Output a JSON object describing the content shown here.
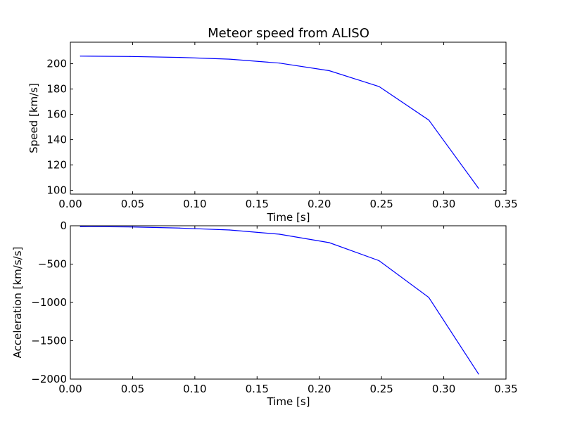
{
  "chart_data": [
    {
      "type": "line",
      "title": "Meteor speed from  ALISO",
      "xlabel": "Time [s]",
      "ylabel": "Speed [km/s]",
      "xlim": [
        0.0,
        0.35
      ],
      "ylim": [
        97,
        217
      ],
      "xticks": [
        "0.00",
        "0.05",
        "0.10",
        "0.15",
        "0.20",
        "0.25",
        "0.30",
        "0.35"
      ],
      "yticks": [
        "100",
        "120",
        "140",
        "160",
        "180",
        "200"
      ],
      "grid": false,
      "color": "#0000ff",
      "x": [
        0.008,
        0.048,
        0.088,
        0.128,
        0.168,
        0.208,
        0.248,
        0.288,
        0.328
      ],
      "y": [
        206,
        205.7,
        205,
        203.6,
        200.5,
        194.5,
        182,
        155.5,
        101.5
      ]
    },
    {
      "type": "line",
      "title": "",
      "xlabel": "Time [s]",
      "ylabel": "Acceleration [km/s/s]",
      "xlim": [
        0.0,
        0.35
      ],
      "ylim": [
        -2000,
        0
      ],
      "xticks": [
        "0.00",
        "0.05",
        "0.10",
        "0.15",
        "0.20",
        "0.25",
        "0.30",
        "0.35"
      ],
      "yticks": [
        "0",
        "−500",
        "−1000",
        "−1500",
        "−2000"
      ],
      "grid": false,
      "color": "#0000ff",
      "x": [
        0.008,
        0.048,
        0.088,
        0.128,
        0.168,
        0.208,
        0.248,
        0.288,
        0.328
      ],
      "y": [
        -10,
        -15,
        -30,
        -55,
        -110,
        -220,
        -455,
        -935,
        -1935
      ]
    }
  ]
}
